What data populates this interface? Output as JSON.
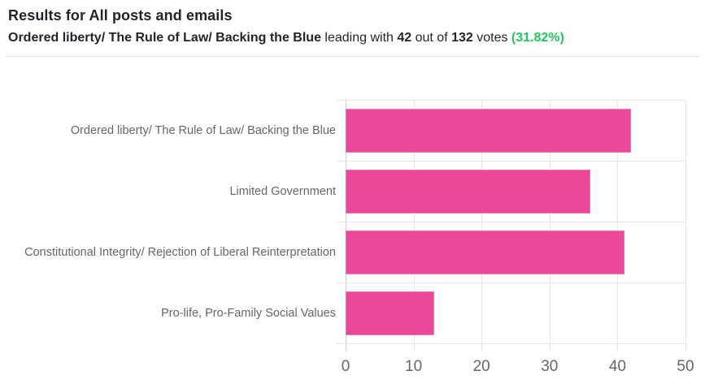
{
  "header": {
    "title": "Results for All posts and emails",
    "leader_name": "Ordered liberty/ The Rule of Law/ Backing the Blue",
    "leading_with_text": " leading with ",
    "leader_votes": "42",
    "out_of_text": " out of ",
    "total_votes": "132",
    "votes_text": " votes ",
    "percentage": "(31.82%)"
  },
  "colors": {
    "bar_fill": "#ec4899",
    "bar_border": "#f173b4",
    "percent_green": "#22c55e",
    "gridline": "#e6e6e6",
    "axis_line": "#cfcfcf",
    "tick_label": "#666666"
  },
  "chart_data": {
    "type": "bar",
    "orientation": "horizontal",
    "title": "",
    "xlabel": "",
    "ylabel": "",
    "categories": [
      "Ordered liberty/ The Rule of Law/ Backing the Blue",
      "Limited Government",
      "Constitutional Integrity/ Rejection of Liberal Reinterpretation",
      "Pro-life, Pro-Family Social Values"
    ],
    "values": [
      42,
      36,
      41,
      13
    ],
    "xlim": [
      0,
      50
    ],
    "xticks": [
      0,
      10,
      20,
      30,
      40,
      50
    ],
    "grid": true,
    "legend": false,
    "total_votes": 132
  }
}
